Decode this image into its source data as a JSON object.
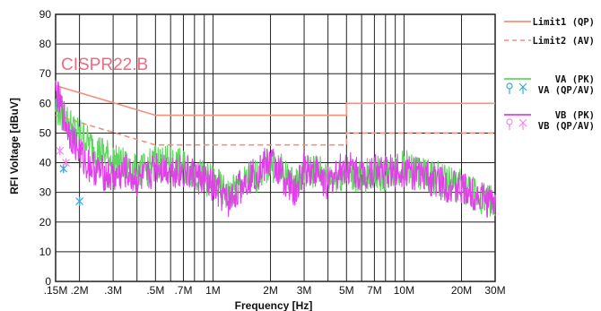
{
  "chart_data": {
    "type": "line",
    "xlabel": "Frequency [Hz]",
    "ylabel": "RFI Voltage [dBuV]",
    "xscale": "log",
    "xlim": [
      150000,
      30000000
    ],
    "ylim": [
      0,
      90
    ],
    "y_ticks": [
      0,
      10,
      20,
      30,
      40,
      50,
      60,
      70,
      80,
      90
    ],
    "x_ticks": [
      {
        "value": 150000,
        "label": ".15M"
      },
      {
        "value": 200000,
        "label": ".2M"
      },
      {
        "value": 300000,
        "label": ".3M"
      },
      {
        "value": 500000,
        "label": ".5M"
      },
      {
        "value": 700000,
        "label": ".7M"
      },
      {
        "value": 1000000,
        "label": "1M"
      },
      {
        "value": 2000000,
        "label": "2M"
      },
      {
        "value": 3000000,
        "label": "3M"
      },
      {
        "value": 5000000,
        "label": "5M"
      },
      {
        "value": 7000000,
        "label": "7M"
      },
      {
        "value": 10000000,
        "label": "10M"
      },
      {
        "value": 20000000,
        "label": "20M"
      },
      {
        "value": 30000000,
        "label": "30M"
      }
    ],
    "grid": true,
    "legend_position": "right",
    "annotations": [
      {
        "text": "CISPR22.B"
      }
    ],
    "series": [
      {
        "name": "Limit1 (QP)",
        "color": "#f4907c",
        "style": "solid",
        "x": [
          150000,
          500000,
          500000,
          5000000,
          5000000,
          30000000
        ],
        "y": [
          66,
          56,
          56,
          56,
          60,
          60
        ]
      },
      {
        "name": "Limit2 (AV)",
        "color": "#f4907c",
        "style": "dashed",
        "x": [
          150000,
          500000,
          500000,
          5000000,
          5000000,
          30000000
        ],
        "y": [
          56,
          46,
          46,
          46,
          50,
          50
        ]
      },
      {
        "name": "VA (PK)",
        "color": "#5fd65f",
        "style": "solid",
        "x": [
          150000,
          160000,
          175000,
          190000,
          210000,
          230000,
          260000,
          300000,
          350000,
          400000,
          450000,
          500000,
          600000,
          700000,
          800000,
          900000,
          1000000,
          1200000,
          1500000,
          1700000,
          2000000,
          2300000,
          2700000,
          3000000,
          3500000,
          4000000,
          4500000,
          5000000,
          6000000,
          7000000,
          8000000,
          10000000,
          12000000,
          15000000,
          20000000,
          25000000,
          30000000
        ],
        "y": [
          60,
          58,
          55,
          52,
          50,
          47,
          45,
          42,
          40,
          38,
          39,
          42,
          41,
          40,
          38,
          36,
          35,
          30,
          35,
          37,
          41,
          38,
          33,
          38,
          39,
          35,
          37,
          38,
          36,
          38,
          37,
          40,
          38,
          36,
          33,
          30,
          28
        ]
      },
      {
        "name": "VA (QP/AV)",
        "color": "#3fa7d6",
        "style": "markers",
        "x": [
          155000,
          165000,
          185000,
          200000
        ],
        "y": [
          60,
          38,
          50,
          27
        ]
      },
      {
        "name": "VB (PK)",
        "color": "#e040e8",
        "style": "solid",
        "x": [
          150000,
          160000,
          175000,
          190000,
          210000,
          230000,
          260000,
          300000,
          350000,
          400000,
          450000,
          500000,
          600000,
          700000,
          800000,
          900000,
          1000000,
          1200000,
          1500000,
          1700000,
          2000000,
          2300000,
          2700000,
          3000000,
          3500000,
          4000000,
          4500000,
          5000000,
          6000000,
          7000000,
          8000000,
          10000000,
          12000000,
          15000000,
          20000000,
          25000000,
          30000000
        ],
        "y": [
          65,
          60,
          52,
          48,
          42,
          40,
          38,
          36,
          38,
          35,
          36,
          40,
          39,
          38,
          37,
          35,
          33,
          28,
          36,
          38,
          42,
          37,
          31,
          40,
          38,
          34,
          38,
          40,
          37,
          39,
          38,
          39,
          37,
          35,
          32,
          30,
          27
        ]
      },
      {
        "name": "VB (QP/AV)",
        "color": "#f08ae8",
        "style": "markers",
        "x": [
          158000,
          170000
        ],
        "y": [
          44,
          40
        ]
      }
    ]
  }
}
